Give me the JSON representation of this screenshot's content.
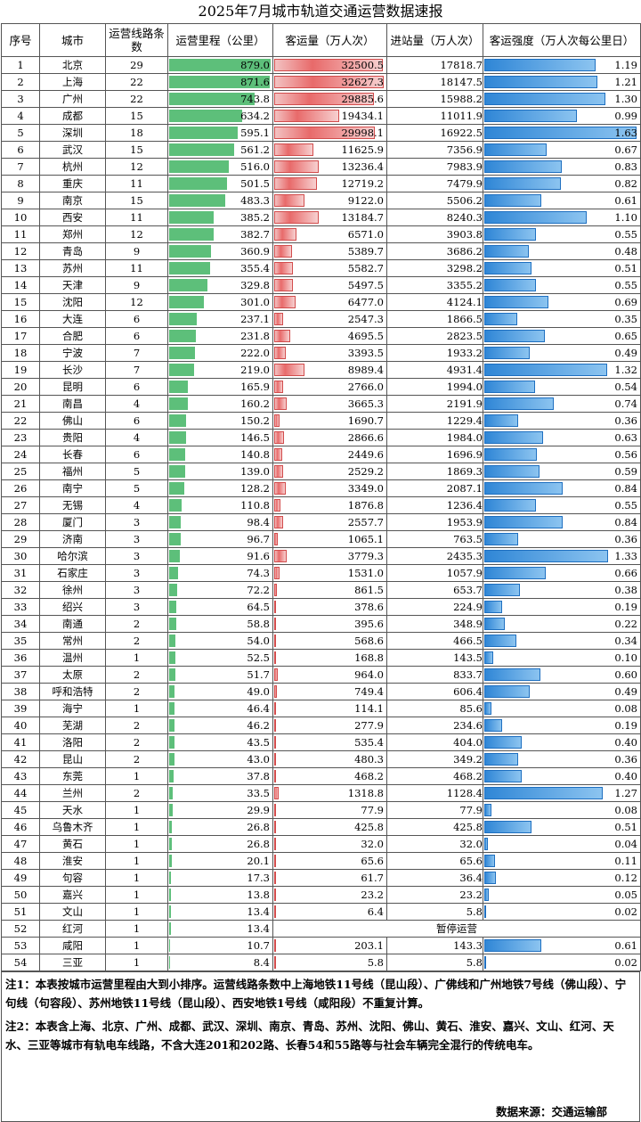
{
  "title": "2025年7月城市轨道交通运营数据速报",
  "headers": {
    "seq": "序号",
    "city": "城市",
    "lines": "运营线路条数",
    "mileage": "运营里程（公里）",
    "ridership": "客运量（万人次）",
    "entries": "进站量（万人次）",
    "intensity": "客运强度（万人次每公里日）"
  },
  "chart_data": {
    "type": "table",
    "title": "2025年7月城市轨道交通运营数据速报",
    "columns": [
      "序号",
      "城市",
      "运营线路条数",
      "运营里程（公里）",
      "客运量（万人次）",
      "进站量（万人次）",
      "客运强度（万人次每公里日）"
    ],
    "bar_max": {
      "mileage": 880,
      "ridership": 33000,
      "intensity": 1.65
    },
    "colors": {
      "mileage_bar": "#5dbf7a",
      "ridership_bar": "#e86a6a",
      "intensity_bar": "#2f86d6"
    },
    "rows": [
      {
        "seq": "1",
        "city": "北京",
        "lines": "29",
        "mileage": "879.0",
        "ridership": "32500.5",
        "entries": "17818.7",
        "intensity": "1.19"
      },
      {
        "seq": "2",
        "city": "上海",
        "lines": "22",
        "mileage": "871.6",
        "ridership": "32627.3",
        "entries": "18147.5",
        "intensity": "1.21"
      },
      {
        "seq": "3",
        "city": "广州",
        "lines": "22",
        "mileage": "743.8",
        "ridership": "29885.6",
        "entries": "15988.2",
        "intensity": "1.30"
      },
      {
        "seq": "4",
        "city": "成都",
        "lines": "15",
        "mileage": "634.2",
        "ridership": "19434.1",
        "entries": "11011.9",
        "intensity": "0.99"
      },
      {
        "seq": "5",
        "city": "深圳",
        "lines": "18",
        "mileage": "595.1",
        "ridership": "29998.1",
        "entries": "16922.5",
        "intensity": "1.63"
      },
      {
        "seq": "6",
        "city": "武汉",
        "lines": "15",
        "mileage": "561.2",
        "ridership": "11625.9",
        "entries": "7356.9",
        "intensity": "0.67"
      },
      {
        "seq": "7",
        "city": "杭州",
        "lines": "12",
        "mileage": "516.0",
        "ridership": "13236.4",
        "entries": "7983.9",
        "intensity": "0.83"
      },
      {
        "seq": "8",
        "city": "重庆",
        "lines": "11",
        "mileage": "501.5",
        "ridership": "12719.2",
        "entries": "7479.9",
        "intensity": "0.82"
      },
      {
        "seq": "9",
        "city": "南京",
        "lines": "15",
        "mileage": "483.3",
        "ridership": "9122.0",
        "entries": "5506.2",
        "intensity": "0.61"
      },
      {
        "seq": "10",
        "city": "西安",
        "lines": "11",
        "mileage": "385.2",
        "ridership": "13184.7",
        "entries": "8240.3",
        "intensity": "1.10"
      },
      {
        "seq": "11",
        "city": "郑州",
        "lines": "12",
        "mileage": "382.7",
        "ridership": "6571.0",
        "entries": "3903.8",
        "intensity": "0.55"
      },
      {
        "seq": "12",
        "city": "青岛",
        "lines": "9",
        "mileage": "360.9",
        "ridership": "5389.7",
        "entries": "3686.2",
        "intensity": "0.48"
      },
      {
        "seq": "13",
        "city": "苏州",
        "lines": "11",
        "mileage": "355.4",
        "ridership": "5582.7",
        "entries": "3298.2",
        "intensity": "0.51"
      },
      {
        "seq": "14",
        "city": "天津",
        "lines": "9",
        "mileage": "329.8",
        "ridership": "5497.5",
        "entries": "3355.2",
        "intensity": "0.55"
      },
      {
        "seq": "15",
        "city": "沈阳",
        "lines": "12",
        "mileage": "301.0",
        "ridership": "6477.0",
        "entries": "4124.1",
        "intensity": "0.69"
      },
      {
        "seq": "16",
        "city": "大连",
        "lines": "6",
        "mileage": "237.1",
        "ridership": "2547.3",
        "entries": "1866.5",
        "intensity": "0.35"
      },
      {
        "seq": "17",
        "city": "合肥",
        "lines": "6",
        "mileage": "231.8",
        "ridership": "4695.5",
        "entries": "2823.5",
        "intensity": "0.65"
      },
      {
        "seq": "18",
        "city": "宁波",
        "lines": "7",
        "mileage": "222.0",
        "ridership": "3393.5",
        "entries": "1933.2",
        "intensity": "0.49"
      },
      {
        "seq": "19",
        "city": "长沙",
        "lines": "7",
        "mileage": "219.0",
        "ridership": "8989.4",
        "entries": "4931.4",
        "intensity": "1.32"
      },
      {
        "seq": "20",
        "city": "昆明",
        "lines": "6",
        "mileage": "165.9",
        "ridership": "2766.0",
        "entries": "1994.0",
        "intensity": "0.54"
      },
      {
        "seq": "21",
        "city": "南昌",
        "lines": "4",
        "mileage": "160.2",
        "ridership": "3665.3",
        "entries": "2191.9",
        "intensity": "0.74"
      },
      {
        "seq": "22",
        "city": "佛山",
        "lines": "6",
        "mileage": "150.2",
        "ridership": "1690.7",
        "entries": "1229.4",
        "intensity": "0.36"
      },
      {
        "seq": "23",
        "city": "贵阳",
        "lines": "4",
        "mileage": "146.5",
        "ridership": "2866.6",
        "entries": "1984.0",
        "intensity": "0.63"
      },
      {
        "seq": "24",
        "city": "长春",
        "lines": "6",
        "mileage": "140.8",
        "ridership": "2449.6",
        "entries": "1696.9",
        "intensity": "0.56"
      },
      {
        "seq": "25",
        "city": "福州",
        "lines": "5",
        "mileage": "139.0",
        "ridership": "2529.2",
        "entries": "1869.3",
        "intensity": "0.59"
      },
      {
        "seq": "26",
        "city": "南宁",
        "lines": "5",
        "mileage": "128.2",
        "ridership": "3349.0",
        "entries": "2087.1",
        "intensity": "0.84"
      },
      {
        "seq": "27",
        "city": "无锡",
        "lines": "4",
        "mileage": "110.8",
        "ridership": "1876.8",
        "entries": "1236.4",
        "intensity": "0.55"
      },
      {
        "seq": "28",
        "city": "厦门",
        "lines": "3",
        "mileage": "98.4",
        "ridership": "2557.7",
        "entries": "1953.9",
        "intensity": "0.84"
      },
      {
        "seq": "29",
        "city": "济南",
        "lines": "3",
        "mileage": "96.7",
        "ridership": "1065.1",
        "entries": "763.5",
        "intensity": "0.36"
      },
      {
        "seq": "30",
        "city": "哈尔滨",
        "lines": "3",
        "mileage": "91.6",
        "ridership": "3779.3",
        "entries": "2435.3",
        "intensity": "1.33"
      },
      {
        "seq": "31",
        "city": "石家庄",
        "lines": "3",
        "mileage": "74.3",
        "ridership": "1531.0",
        "entries": "1057.9",
        "intensity": "0.66"
      },
      {
        "seq": "32",
        "city": "徐州",
        "lines": "3",
        "mileage": "72.2",
        "ridership": "861.5",
        "entries": "653.7",
        "intensity": "0.38"
      },
      {
        "seq": "33",
        "city": "绍兴",
        "lines": "3",
        "mileage": "64.5",
        "ridership": "378.6",
        "entries": "224.9",
        "intensity": "0.19"
      },
      {
        "seq": "34",
        "city": "南通",
        "lines": "2",
        "mileage": "58.8",
        "ridership": "395.6",
        "entries": "348.9",
        "intensity": "0.22"
      },
      {
        "seq": "35",
        "city": "常州",
        "lines": "2",
        "mileage": "54.0",
        "ridership": "568.6",
        "entries": "466.5",
        "intensity": "0.34"
      },
      {
        "seq": "36",
        "city": "温州",
        "lines": "1",
        "mileage": "52.5",
        "ridership": "168.8",
        "entries": "143.5",
        "intensity": "0.10"
      },
      {
        "seq": "37",
        "city": "太原",
        "lines": "2",
        "mileage": "51.7",
        "ridership": "964.0",
        "entries": "833.7",
        "intensity": "0.60"
      },
      {
        "seq": "38",
        "city": "呼和浩特",
        "lines": "2",
        "mileage": "49.0",
        "ridership": "749.4",
        "entries": "606.4",
        "intensity": "0.49"
      },
      {
        "seq": "39",
        "city": "海宁",
        "lines": "1",
        "mileage": "46.4",
        "ridership": "114.1",
        "entries": "85.6",
        "intensity": "0.08"
      },
      {
        "seq": "40",
        "city": "芜湖",
        "lines": "2",
        "mileage": "46.2",
        "ridership": "277.9",
        "entries": "234.6",
        "intensity": "0.19"
      },
      {
        "seq": "41",
        "city": "洛阳",
        "lines": "2",
        "mileage": "43.5",
        "ridership": "535.4",
        "entries": "404.0",
        "intensity": "0.40"
      },
      {
        "seq": "42",
        "city": "昆山",
        "lines": "2",
        "mileage": "43.0",
        "ridership": "480.3",
        "entries": "349.2",
        "intensity": "0.36"
      },
      {
        "seq": "43",
        "city": "东莞",
        "lines": "1",
        "mileage": "37.8",
        "ridership": "468.2",
        "entries": "468.2",
        "intensity": "0.40"
      },
      {
        "seq": "44",
        "city": "兰州",
        "lines": "2",
        "mileage": "33.5",
        "ridership": "1318.8",
        "entries": "1128.4",
        "intensity": "1.27"
      },
      {
        "seq": "45",
        "city": "天水",
        "lines": "1",
        "mileage": "29.9",
        "ridership": "77.9",
        "entries": "77.9",
        "intensity": "0.08"
      },
      {
        "seq": "46",
        "city": "乌鲁木齐",
        "lines": "1",
        "mileage": "26.8",
        "ridership": "425.8",
        "entries": "425.8",
        "intensity": "0.51"
      },
      {
        "seq": "47",
        "city": "黄石",
        "lines": "1",
        "mileage": "26.8",
        "ridership": "32.0",
        "entries": "32.0",
        "intensity": "0.04"
      },
      {
        "seq": "48",
        "city": "淮安",
        "lines": "1",
        "mileage": "20.1",
        "ridership": "65.6",
        "entries": "65.6",
        "intensity": "0.11"
      },
      {
        "seq": "49",
        "city": "句容",
        "lines": "1",
        "mileage": "17.3",
        "ridership": "61.7",
        "entries": "36.4",
        "intensity": "0.12"
      },
      {
        "seq": "50",
        "city": "嘉兴",
        "lines": "1",
        "mileage": "13.8",
        "ridership": "23.2",
        "entries": "23.2",
        "intensity": "0.05"
      },
      {
        "seq": "51",
        "city": "文山",
        "lines": "1",
        "mileage": "13.4",
        "ridership": "6.4",
        "entries": "5.8",
        "intensity": "0.02"
      },
      {
        "seq": "52",
        "city": "红河",
        "lines": "1",
        "mileage": "13.4",
        "suspended": "暂停运营"
      },
      {
        "seq": "53",
        "city": "咸阳",
        "lines": "1",
        "mileage": "10.7",
        "ridership": "203.1",
        "entries": "143.3",
        "intensity": "0.61"
      },
      {
        "seq": "54",
        "city": "三亚",
        "lines": "1",
        "mileage": "8.4",
        "ridership": "5.8",
        "entries": "5.8",
        "intensity": "0.02"
      }
    ]
  },
  "notes": {
    "note1": "注1：本表按城市运营里程由大到小排序。运营线路条数中上海地铁11号线（昆山段）、广佛线和广州地铁7号线（佛山段）、宁句线（句容段）、苏州地铁11号线（昆山段）、西安地铁1号线（咸阳段）不重复计算。",
    "note2": "注2：本表含上海、北京、广州、成都、武汉、深圳、南京、青岛、苏州、沈阳、佛山、黄石、淮安、嘉兴、文山、红河、天水、三亚等城市有轨电车线路，不含大连201和202路、长春54和55路等与社会车辆完全混行的传统电车。",
    "source": "数据来源：交通运输部"
  }
}
